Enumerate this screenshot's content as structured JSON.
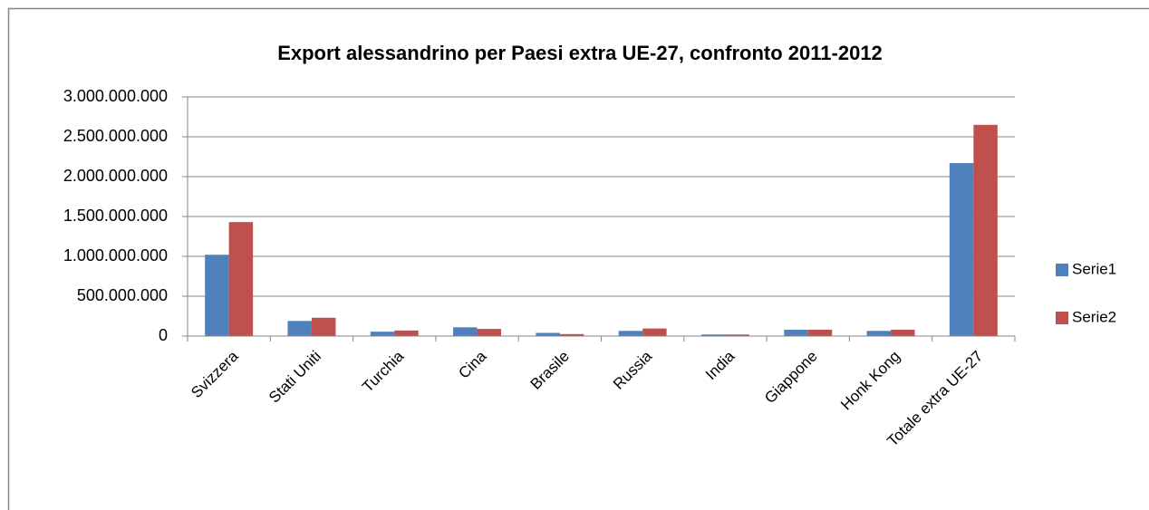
{
  "chart_data": {
    "type": "bar",
    "title": "Export alessandrino per Paesi extra UE-27, confronto 2011-2012",
    "categories": [
      "Svizzera",
      "Stati Uniti",
      "Turchia",
      "Cina",
      "Brasile",
      "Russia",
      "India",
      "Giappone",
      "Honk Kong",
      "Totale extra UE-27"
    ],
    "series": [
      {
        "name": "Serie1",
        "color": "#4f81bd",
        "values": [
          1020000000,
          190000000,
          55000000,
          110000000,
          40000000,
          65000000,
          20000000,
          80000000,
          65000000,
          2170000000
        ]
      },
      {
        "name": "Serie2",
        "color": "#c0504d",
        "values": [
          1430000000,
          230000000,
          70000000,
          90000000,
          25000000,
          95000000,
          20000000,
          80000000,
          80000000,
          2650000000
        ]
      }
    ],
    "ylim": [
      0,
      3000000000
    ],
    "yticks": [
      0,
      {
        "value": 500000000,
        "label": "500.000.000"
      },
      {
        "value": 1000000000,
        "label": "1.000.000.000"
      },
      {
        "value": 1500000000,
        "label": "1.500.000.000"
      },
      {
        "value": 2000000000,
        "label": "2.000.000.000"
      },
      {
        "value": 2500000000,
        "label": "2.500.000.000"
      },
      {
        "value": 3000000000,
        "label": "3.000.000.000"
      }
    ],
    "grid": true,
    "legend": "right"
  }
}
